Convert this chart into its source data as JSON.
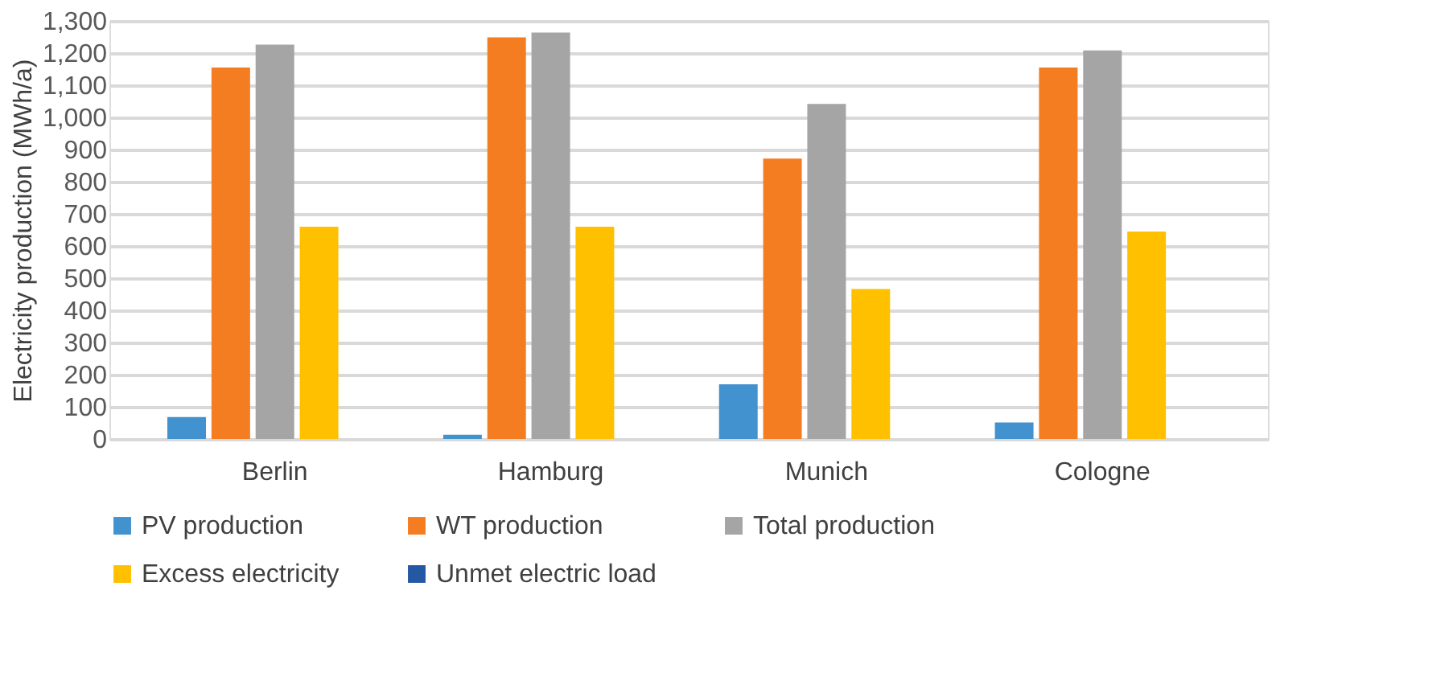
{
  "chart_data": {
    "type": "bar",
    "ylabel": "Electricity production (MWh/a)",
    "categories": [
      "Berlin",
      "Hamburg",
      "Munich",
      "Cologne"
    ],
    "series": [
      {
        "name": "PV production",
        "color": "#4292d0",
        "values": [
          68,
          13,
          170,
          51
        ]
      },
      {
        "name": "WT production",
        "color": "#f47d22",
        "values": [
          1155,
          1249,
          872,
          1155
        ]
      },
      {
        "name": "Total production",
        "color": "#a5a5a5",
        "values": [
          1226,
          1264,
          1042,
          1208
        ]
      },
      {
        "name": "Excess electricity",
        "color": "#ffc000",
        "values": [
          660,
          660,
          466,
          645
        ]
      },
      {
        "name": "Unmet electric load",
        "color": "#2458a3",
        "values": [
          0,
          0,
          0,
          0
        ]
      }
    ],
    "ylim": [
      0,
      1300
    ],
    "yticks": [
      0,
      100,
      200,
      300,
      400,
      500,
      600,
      700,
      800,
      900,
      {
        "value": 1000,
        "label": "1,000"
      },
      {
        "value": 1100,
        "label": "1,100"
      },
      {
        "value": 1200,
        "label": "1,200"
      },
      {
        "value": 1300,
        "label": "1,300"
      }
    ],
    "grid": "y",
    "legend": "bottom"
  }
}
